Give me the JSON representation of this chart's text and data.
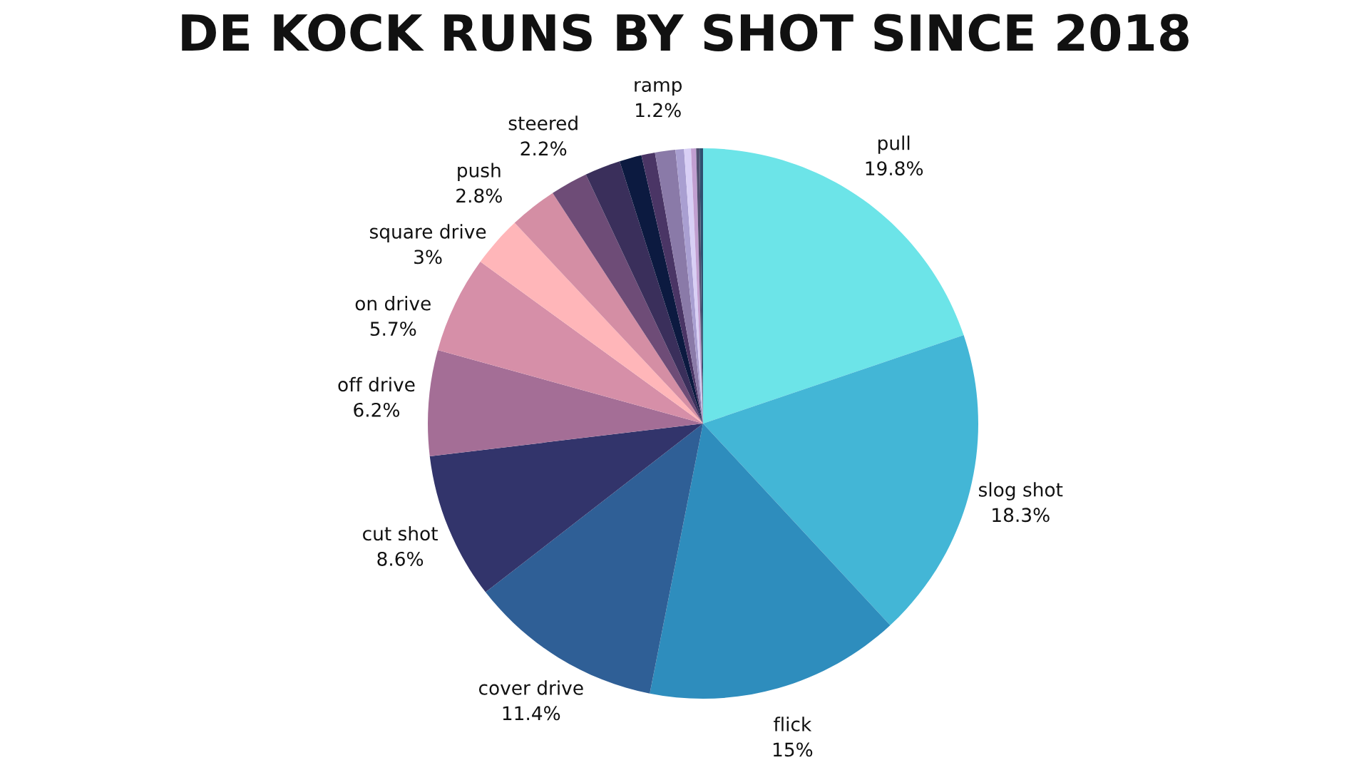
{
  "chart_data": {
    "type": "pie",
    "title": "DE KOCK RUNS BY SHOT SINCE 2018",
    "categories": [
      "pull",
      "slog shot",
      "flick",
      "cover drive",
      "cut shot",
      "off drive",
      "on drive",
      "square drive",
      "push",
      "steered",
      null,
      null,
      null,
      "ramp",
      null,
      null,
      null,
      null,
      null
    ],
    "values": [
      19.8,
      18.3,
      15,
      11.4,
      8.6,
      6.2,
      5.7,
      3,
      2.8,
      2.2,
      2.1,
      1.3,
      0.8,
      1.2,
      0.5,
      0.4,
      0.3,
      0.2,
      0.2
    ],
    "value_labels": [
      "19.8%",
      "18.3%",
      "15%",
      "11.4%",
      "8.6%",
      "6.2%",
      "5.7%",
      "3%",
      "2.8%",
      "2.2%",
      null,
      null,
      null,
      "1.2%",
      null,
      null,
      null,
      null,
      null
    ],
    "colors": [
      "#6ce4e8",
      "#43b6d6",
      "#2e8dbd",
      "#2f5f96",
      "#32346b",
      "#a46e96",
      "#d68fa8",
      "#ffb6b9",
      "#d48ea4",
      "#6e4c77",
      "#3a2f5b",
      "#0c1a40",
      "#4a3565",
      "#8a7aa8",
      "#a99fd1",
      "#d8cff5",
      "#c19fd0",
      "#505070",
      "#2f4f6f"
    ]
  }
}
